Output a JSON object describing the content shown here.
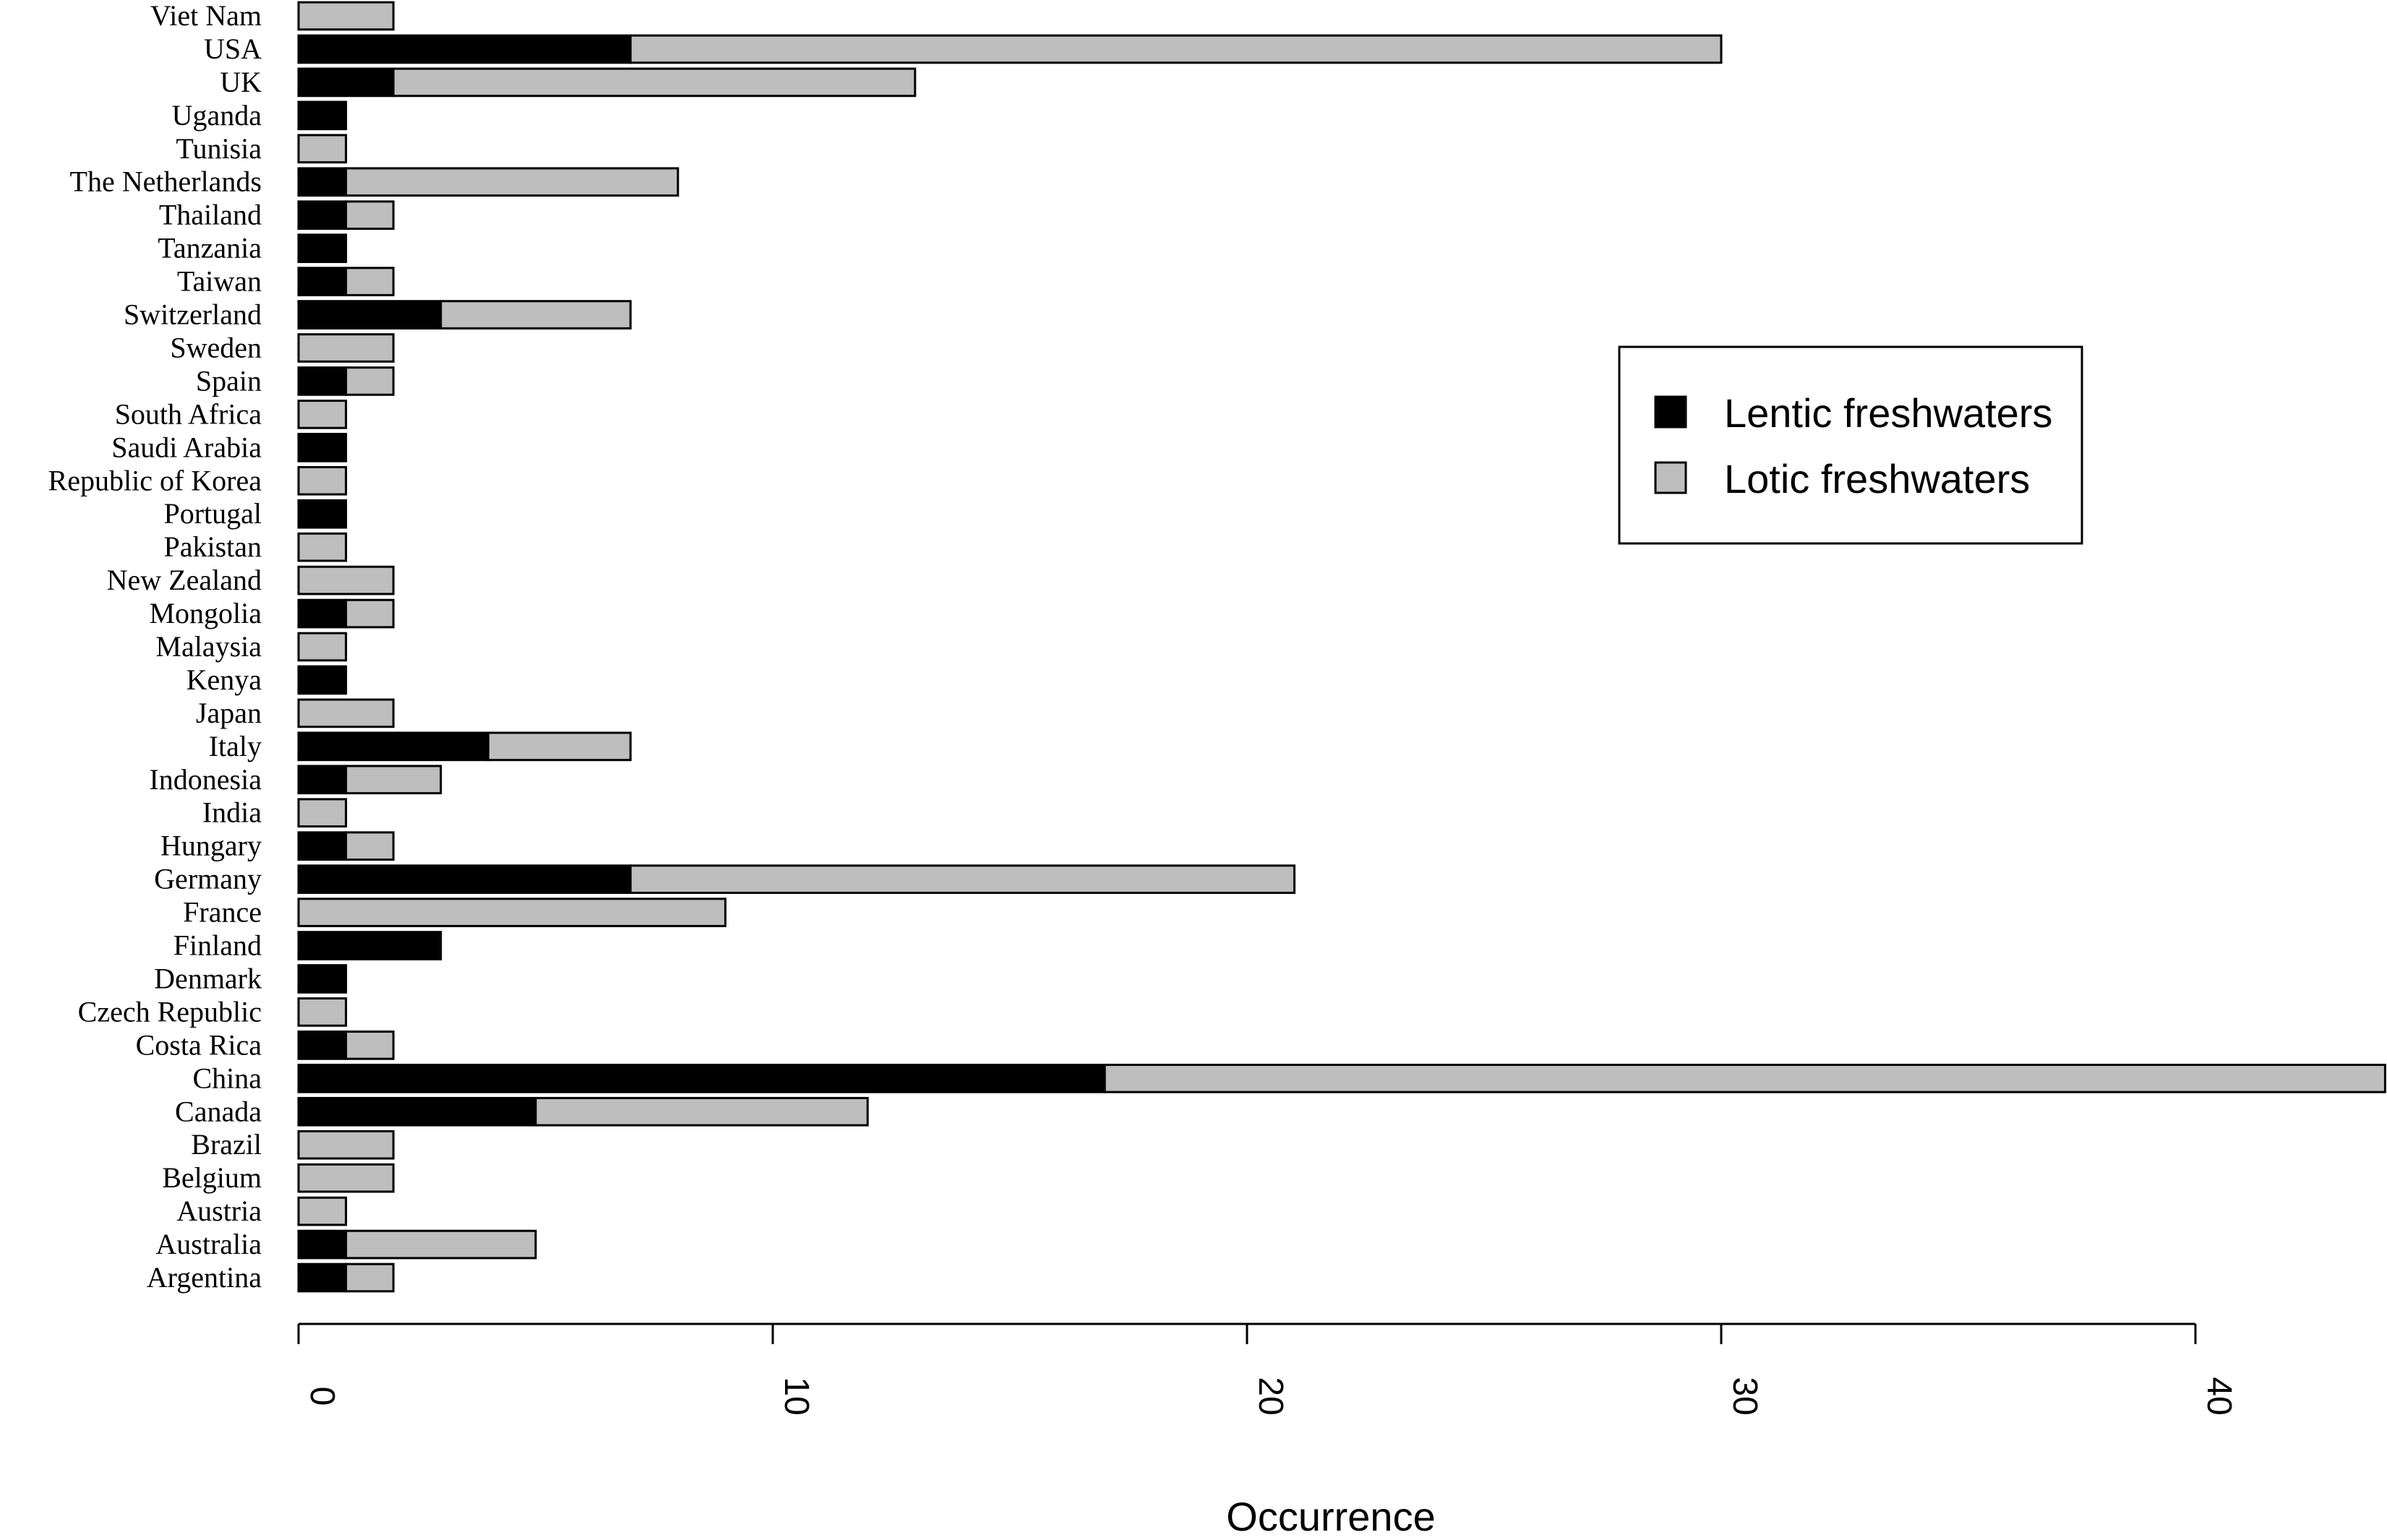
{
  "chart_data": {
    "type": "bar",
    "orientation": "horizontal",
    "stacked": true,
    "categories": [
      "Argentina",
      "Australia",
      "Austria",
      "Belgium",
      "Brazil",
      "Canada",
      "China",
      "Costa Rica",
      "Czech Republic",
      "Denmark",
      "Finland",
      "France",
      "Germany",
      "Hungary",
      "India",
      "Indonesia",
      "Italy",
      "Japan",
      "Kenya",
      "Malaysia",
      "Mongolia",
      "New Zealand",
      "Pakistan",
      "Portugal",
      "Republic of Korea",
      "Saudi Arabia",
      "South Africa",
      "Spain",
      "Sweden",
      "Switzerland",
      "Taiwan",
      "Tanzania",
      "Thailand",
      "The Netherlands",
      "Tunisia",
      "Uganda",
      "UK",
      "USA",
      "Viet Nam"
    ],
    "series": [
      {
        "name": "Lentic freshwaters",
        "color": "#000000",
        "values": [
          1,
          1,
          0,
          0,
          0,
          5,
          17,
          1,
          0,
          1,
          3,
          0,
          7,
          1,
          0,
          1,
          4,
          0,
          1,
          0,
          1,
          0,
          0,
          1,
          0,
          1,
          0,
          1,
          0,
          3,
          1,
          1,
          1,
          1,
          0,
          1,
          2,
          7,
          0
        ]
      },
      {
        "name": "Lotic freshwaters",
        "color": "#bebebe",
        "values": [
          1,
          4,
          1,
          2,
          2,
          7,
          27,
          1,
          1,
          0,
          0,
          9,
          14,
          1,
          1,
          2,
          3,
          2,
          0,
          1,
          1,
          2,
          1,
          0,
          1,
          0,
          1,
          1,
          2,
          4,
          1,
          0,
          1,
          7,
          1,
          0,
          11,
          23,
          2
        ]
      }
    ],
    "xlabel": "Occurrence",
    "ylabel": "",
    "xlim": [
      0,
      44
    ],
    "xticks": [
      0,
      10,
      20,
      30,
      40
    ],
    "grid": false,
    "legend_position": "top-right"
  }
}
